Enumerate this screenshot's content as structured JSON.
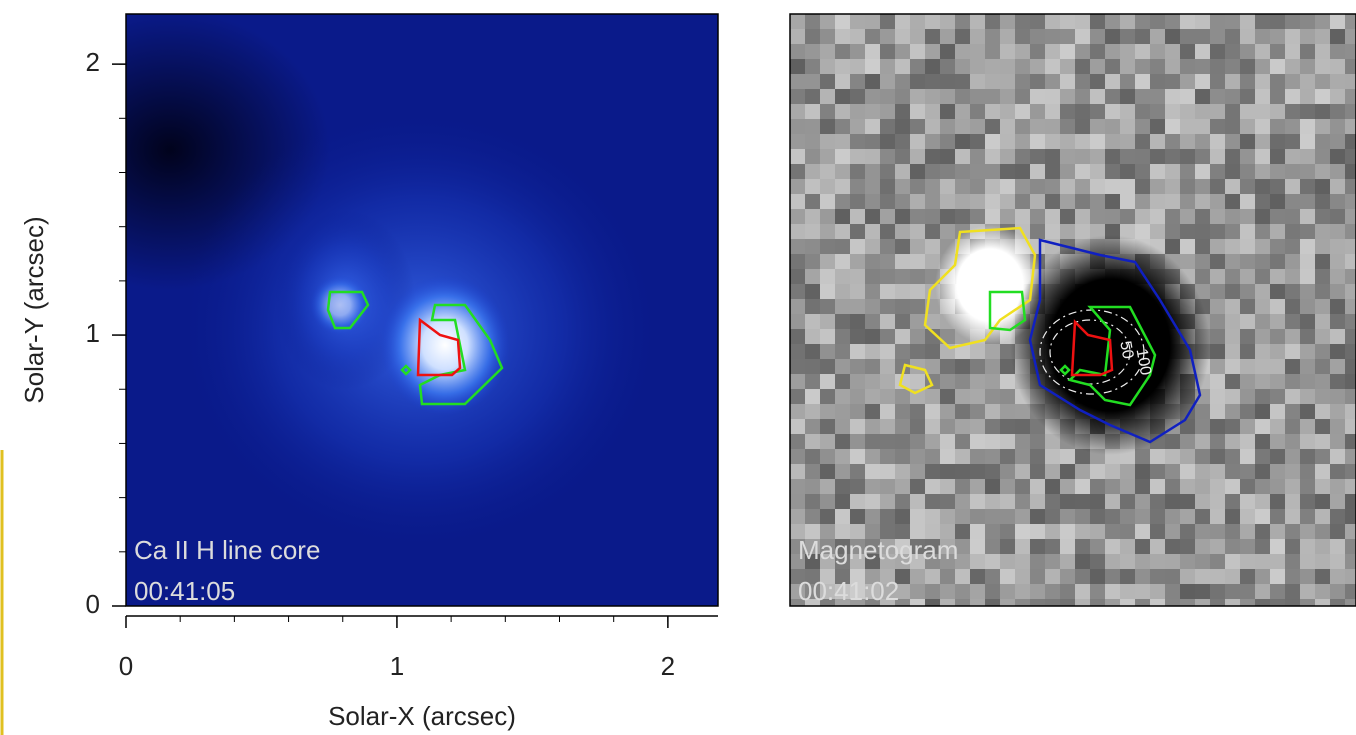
{
  "chart_data": [
    {
      "type": "image",
      "label": "Ca II H line core",
      "time": "00:41:05",
      "xlabel": "Solar-X (arcsec)",
      "ylabel": "Solar-Y (arcsec)",
      "xlim": [
        0,
        2.185
      ],
      "ylim": [
        0,
        2.185
      ],
      "xticks": [
        0,
        1,
        2
      ],
      "yticks": [
        0,
        1,
        2
      ]
    },
    {
      "type": "image",
      "label": "Magnetogram",
      "time": "00:41:02",
      "contour_levels": [
        50,
        100
      ]
    }
  ]
}
